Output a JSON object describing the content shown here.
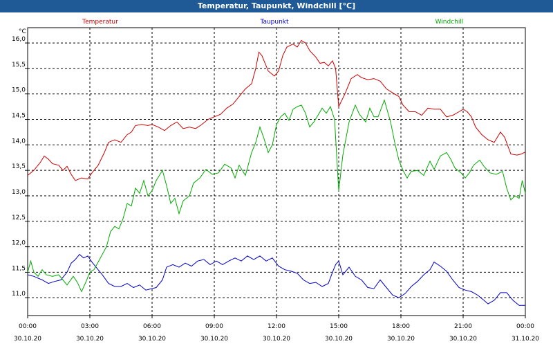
{
  "window": {
    "title": "Temperatur, Taupunkt, Windchill [°C]"
  },
  "chart_data": {
    "type": "line",
    "title": "Temperatur, Taupunkt, Windchill [°C]",
    "ylabel": "°C",
    "xlabel": "",
    "x_hours_range": [
      0,
      24
    ],
    "ylim": [
      10.65,
      16.3
    ],
    "yticks": [
      11.0,
      11.5,
      12.0,
      12.5,
      13.0,
      13.5,
      14.0,
      14.5,
      15.0,
      15.5,
      16.0
    ],
    "ytick_labels": [
      "11,0",
      "11,5",
      "12,0",
      "12,5",
      "13,0",
      "13,5",
      "14,0",
      "14,5",
      "15,0",
      "15,5",
      "16,0"
    ],
    "xticks": [
      {
        "h": 0,
        "time": "00:00",
        "date": "30.10.20"
      },
      {
        "h": 3,
        "time": "03:00",
        "date": "30.10.20"
      },
      {
        "h": 6,
        "time": "06:00",
        "date": "30.10.20"
      },
      {
        "h": 9,
        "time": "09:00",
        "date": "30.10.20"
      },
      {
        "h": 12,
        "time": "12:00",
        "date": "30.10.20"
      },
      {
        "h": 15,
        "time": "15:00",
        "date": "30.10.20"
      },
      {
        "h": 18,
        "time": "18:00",
        "date": "30.10.20"
      },
      {
        "h": 21,
        "time": "21:00",
        "date": "30.10.20"
      },
      {
        "h": 24,
        "time": "00:00",
        "date": "31.10.20"
      }
    ],
    "grid": true,
    "series": [
      {
        "name": "Temperatur",
        "color": "#cc0000",
        "points": [
          [
            0,
            13.4
          ],
          [
            0.3,
            13.5
          ],
          [
            0.6,
            13.65
          ],
          [
            0.8,
            13.78
          ],
          [
            1.0,
            13.72
          ],
          [
            1.2,
            13.63
          ],
          [
            1.5,
            13.6
          ],
          [
            1.7,
            13.5
          ],
          [
            1.9,
            13.58
          ],
          [
            2.1,
            13.42
          ],
          [
            2.3,
            13.3
          ],
          [
            2.6,
            13.35
          ],
          [
            2.9,
            13.33
          ],
          [
            3.1,
            13.45
          ],
          [
            3.4,
            13.6
          ],
          [
            3.7,
            13.85
          ],
          [
            3.9,
            14.05
          ],
          [
            4.2,
            14.1
          ],
          [
            4.5,
            14.05
          ],
          [
            4.8,
            14.2
          ],
          [
            5.0,
            14.25
          ],
          [
            5.2,
            14.38
          ],
          [
            5.5,
            14.4
          ],
          [
            5.8,
            14.38
          ],
          [
            6.0,
            14.4
          ],
          [
            6.3,
            14.35
          ],
          [
            6.6,
            14.28
          ],
          [
            6.9,
            14.38
          ],
          [
            7.2,
            14.45
          ],
          [
            7.5,
            14.32
          ],
          [
            7.8,
            14.35
          ],
          [
            8.1,
            14.32
          ],
          [
            8.4,
            14.4
          ],
          [
            8.7,
            14.5
          ],
          [
            9.0,
            14.55
          ],
          [
            9.3,
            14.6
          ],
          [
            9.6,
            14.72
          ],
          [
            9.9,
            14.8
          ],
          [
            10.2,
            14.95
          ],
          [
            10.5,
            15.1
          ],
          [
            10.8,
            15.2
          ],
          [
            11.0,
            15.5
          ],
          [
            11.15,
            15.82
          ],
          [
            11.3,
            15.75
          ],
          [
            11.6,
            15.45
          ],
          [
            11.9,
            15.35
          ],
          [
            12.1,
            15.45
          ],
          [
            12.3,
            15.75
          ],
          [
            12.5,
            15.92
          ],
          [
            12.8,
            15.98
          ],
          [
            13.0,
            15.92
          ],
          [
            13.2,
            16.05
          ],
          [
            13.4,
            16.0
          ],
          [
            13.6,
            15.85
          ],
          [
            13.9,
            15.72
          ],
          [
            14.1,
            15.6
          ],
          [
            14.3,
            15.62
          ],
          [
            14.5,
            15.55
          ],
          [
            14.7,
            15.65
          ],
          [
            14.85,
            15.5
          ],
          [
            15.0,
            14.75
          ],
          [
            15.3,
            15.0
          ],
          [
            15.6,
            15.3
          ],
          [
            15.9,
            15.38
          ],
          [
            16.1,
            15.32
          ],
          [
            16.4,
            15.28
          ],
          [
            16.7,
            15.3
          ],
          [
            17.0,
            15.25
          ],
          [
            17.3,
            15.1
          ],
          [
            17.6,
            15.02
          ],
          [
            17.9,
            14.95
          ],
          [
            18.1,
            14.78
          ],
          [
            18.4,
            14.65
          ],
          [
            18.7,
            14.65
          ],
          [
            19.0,
            14.58
          ],
          [
            19.3,
            14.72
          ],
          [
            19.6,
            14.7
          ],
          [
            19.9,
            14.7
          ],
          [
            20.2,
            14.55
          ],
          [
            20.5,
            14.58
          ],
          [
            20.8,
            14.65
          ],
          [
            21.0,
            14.7
          ],
          [
            21.2,
            14.65
          ],
          [
            21.4,
            14.55
          ],
          [
            21.6,
            14.35
          ],
          [
            21.9,
            14.2
          ],
          [
            22.2,
            14.1
          ],
          [
            22.5,
            14.05
          ],
          [
            22.8,
            14.25
          ],
          [
            23.0,
            14.15
          ],
          [
            23.3,
            13.82
          ],
          [
            23.6,
            13.8
          ],
          [
            23.8,
            13.82
          ],
          [
            24.0,
            13.86
          ]
        ]
      },
      {
        "name": "Taupunkt",
        "color": "#0000cc",
        "points": [
          [
            0,
            11.45
          ],
          [
            0.3,
            11.42
          ],
          [
            0.7,
            11.35
          ],
          [
            1.0,
            11.28
          ],
          [
            1.3,
            11.32
          ],
          [
            1.6,
            11.35
          ],
          [
            1.9,
            11.5
          ],
          [
            2.1,
            11.68
          ],
          [
            2.3,
            11.75
          ],
          [
            2.5,
            11.85
          ],
          [
            2.7,
            11.78
          ],
          [
            2.9,
            11.82
          ],
          [
            3.1,
            11.7
          ],
          [
            3.3,
            11.6
          ],
          [
            3.6,
            11.45
          ],
          [
            3.9,
            11.28
          ],
          [
            4.2,
            11.22
          ],
          [
            4.5,
            11.22
          ],
          [
            4.8,
            11.28
          ],
          [
            5.1,
            11.2
          ],
          [
            5.4,
            11.25
          ],
          [
            5.7,
            11.15
          ],
          [
            6.0,
            11.18
          ],
          [
            6.2,
            11.2
          ],
          [
            6.5,
            11.35
          ],
          [
            6.7,
            11.6
          ],
          [
            7.0,
            11.65
          ],
          [
            7.3,
            11.6
          ],
          [
            7.6,
            11.68
          ],
          [
            7.9,
            11.62
          ],
          [
            8.2,
            11.72
          ],
          [
            8.5,
            11.75
          ],
          [
            8.8,
            11.65
          ],
          [
            9.1,
            11.72
          ],
          [
            9.4,
            11.65
          ],
          [
            9.7,
            11.72
          ],
          [
            10.0,
            11.78
          ],
          [
            10.3,
            11.72
          ],
          [
            10.6,
            11.82
          ],
          [
            10.9,
            11.75
          ],
          [
            11.2,
            11.82
          ],
          [
            11.5,
            11.72
          ],
          [
            11.8,
            11.78
          ],
          [
            12.1,
            11.62
          ],
          [
            12.4,
            11.55
          ],
          [
            12.7,
            11.52
          ],
          [
            13.0,
            11.48
          ],
          [
            13.3,
            11.35
          ],
          [
            13.6,
            11.28
          ],
          [
            13.9,
            11.3
          ],
          [
            14.2,
            11.22
          ],
          [
            14.5,
            11.28
          ],
          [
            14.7,
            11.5
          ],
          [
            14.85,
            11.65
          ],
          [
            15.0,
            11.72
          ],
          [
            15.2,
            11.45
          ],
          [
            15.5,
            11.6
          ],
          [
            15.8,
            11.42
          ],
          [
            16.1,
            11.35
          ],
          [
            16.4,
            11.2
          ],
          [
            16.7,
            11.18
          ],
          [
            17.0,
            11.35
          ],
          [
            17.3,
            11.2
          ],
          [
            17.6,
            11.05
          ],
          [
            17.9,
            11.0
          ],
          [
            18.2,
            11.08
          ],
          [
            18.5,
            11.22
          ],
          [
            18.8,
            11.32
          ],
          [
            19.1,
            11.45
          ],
          [
            19.4,
            11.55
          ],
          [
            19.6,
            11.7
          ],
          [
            19.9,
            11.62
          ],
          [
            20.2,
            11.52
          ],
          [
            20.5,
            11.35
          ],
          [
            20.8,
            11.2
          ],
          [
            21.1,
            11.15
          ],
          [
            21.4,
            11.12
          ],
          [
            21.7,
            11.05
          ],
          [
            22.0,
            10.95
          ],
          [
            22.2,
            10.88
          ],
          [
            22.5,
            10.95
          ],
          [
            22.8,
            11.1
          ],
          [
            23.1,
            11.1
          ],
          [
            23.4,
            10.95
          ],
          [
            23.7,
            10.85
          ],
          [
            24.0,
            10.85
          ]
        ]
      },
      {
        "name": "Windchill",
        "color": "#00aa00",
        "points": [
          [
            0,
            11.5
          ],
          [
            0.15,
            11.72
          ],
          [
            0.3,
            11.5
          ],
          [
            0.5,
            11.42
          ],
          [
            0.7,
            11.55
          ],
          [
            0.9,
            11.45
          ],
          [
            1.2,
            11.42
          ],
          [
            1.5,
            11.45
          ],
          [
            1.7,
            11.35
          ],
          [
            1.9,
            11.25
          ],
          [
            2.2,
            11.42
          ],
          [
            2.4,
            11.3
          ],
          [
            2.6,
            11.12
          ],
          [
            2.8,
            11.3
          ],
          [
            3.0,
            11.5
          ],
          [
            3.2,
            11.55
          ],
          [
            3.4,
            11.7
          ],
          [
            3.6,
            11.85
          ],
          [
            3.8,
            12.0
          ],
          [
            4.0,
            12.3
          ],
          [
            4.2,
            12.4
          ],
          [
            4.4,
            12.35
          ],
          [
            4.6,
            12.55
          ],
          [
            4.8,
            12.85
          ],
          [
            5.0,
            12.8
          ],
          [
            5.2,
            13.15
          ],
          [
            5.4,
            13.05
          ],
          [
            5.6,
            13.3
          ],
          [
            5.8,
            13.0
          ],
          [
            6.0,
            13.1
          ],
          [
            6.2,
            13.3
          ],
          [
            6.5,
            13.5
          ],
          [
            6.7,
            13.2
          ],
          [
            6.9,
            12.85
          ],
          [
            7.1,
            12.95
          ],
          [
            7.3,
            12.65
          ],
          [
            7.5,
            12.9
          ],
          [
            7.8,
            13.0
          ],
          [
            8.0,
            13.25
          ],
          [
            8.3,
            13.35
          ],
          [
            8.6,
            13.52
          ],
          [
            8.9,
            13.42
          ],
          [
            9.2,
            13.45
          ],
          [
            9.5,
            13.62
          ],
          [
            9.8,
            13.55
          ],
          [
            10.0,
            13.35
          ],
          [
            10.2,
            13.6
          ],
          [
            10.5,
            13.4
          ],
          [
            10.8,
            13.85
          ],
          [
            11.0,
            14.05
          ],
          [
            11.2,
            14.35
          ],
          [
            11.4,
            14.12
          ],
          [
            11.6,
            13.85
          ],
          [
            11.8,
            14.0
          ],
          [
            12.0,
            14.4
          ],
          [
            12.2,
            14.55
          ],
          [
            12.4,
            14.62
          ],
          [
            12.6,
            14.48
          ],
          [
            12.8,
            14.7
          ],
          [
            13.0,
            14.75
          ],
          [
            13.2,
            14.78
          ],
          [
            13.4,
            14.62
          ],
          [
            13.6,
            14.35
          ],
          [
            13.8,
            14.45
          ],
          [
            14.0,
            14.58
          ],
          [
            14.2,
            14.72
          ],
          [
            14.4,
            14.62
          ],
          [
            14.6,
            14.75
          ],
          [
            14.8,
            14.5
          ],
          [
            15.0,
            13.1
          ],
          [
            15.2,
            13.8
          ],
          [
            15.5,
            14.45
          ],
          [
            15.8,
            14.78
          ],
          [
            16.0,
            14.6
          ],
          [
            16.3,
            14.45
          ],
          [
            16.5,
            14.72
          ],
          [
            16.7,
            14.55
          ],
          [
            16.9,
            14.55
          ],
          [
            17.2,
            14.88
          ],
          [
            17.5,
            14.45
          ],
          [
            17.7,
            14.05
          ],
          [
            17.9,
            13.7
          ],
          [
            18.1,
            13.5
          ],
          [
            18.3,
            13.35
          ],
          [
            18.5,
            13.48
          ],
          [
            18.8,
            13.5
          ],
          [
            19.1,
            13.4
          ],
          [
            19.4,
            13.68
          ],
          [
            19.6,
            13.52
          ],
          [
            19.9,
            13.78
          ],
          [
            20.2,
            13.85
          ],
          [
            20.4,
            13.72
          ],
          [
            20.6,
            13.55
          ],
          [
            20.9,
            13.45
          ],
          [
            21.1,
            13.35
          ],
          [
            21.3,
            13.45
          ],
          [
            21.5,
            13.6
          ],
          [
            21.8,
            13.7
          ],
          [
            22.0,
            13.58
          ],
          [
            22.3,
            13.45
          ],
          [
            22.6,
            13.42
          ],
          [
            22.9,
            13.48
          ],
          [
            23.1,
            13.15
          ],
          [
            23.3,
            12.92
          ],
          [
            23.5,
            13.0
          ],
          [
            23.7,
            12.95
          ],
          [
            23.85,
            13.3
          ],
          [
            24.0,
            13.05
          ]
        ]
      }
    ]
  }
}
